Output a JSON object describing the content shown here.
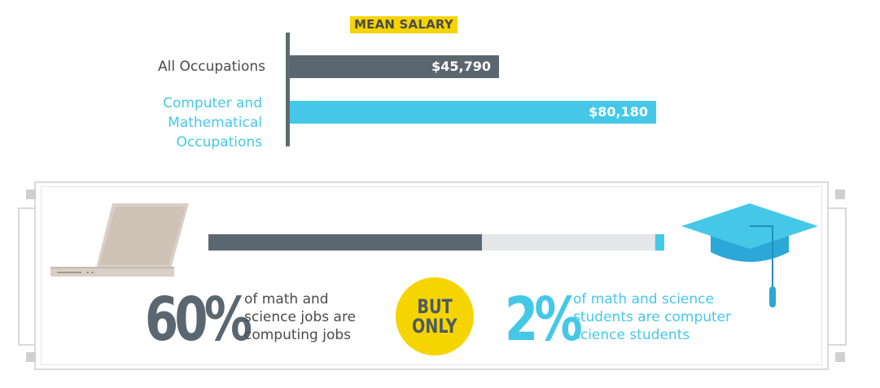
{
  "chart_data": {
    "type": "bar",
    "title": "MEAN SALARY",
    "categories": [
      "All Occupations",
      "Computer and Mathematical Occupations"
    ],
    "category_lines": [
      [
        "All Occupations"
      ],
      [
        "Computer and",
        "Mathematical",
        "Occupations"
      ]
    ],
    "values": [
      45790,
      80180
    ],
    "value_labels": [
      "$45,790",
      "$80,180"
    ],
    "xlim": [
      0,
      89000
    ],
    "orientation": "horizontal",
    "colors": [
      "#5b6770",
      "#45c8e8"
    ],
    "label_colors": [
      "#4a4a4a",
      "#45c8e8"
    ]
  },
  "stat_bar": {
    "segments": [
      {
        "fraction": 0.6,
        "color": "#5b6770"
      },
      {
        "fraction": 0.38,
        "color": "#e4e6e8"
      },
      {
        "fraction": 0.02,
        "color": "#45c8e8"
      }
    ]
  },
  "stats": {
    "left": {
      "value": "60%",
      "lines": [
        "of math and",
        "science jobs are",
        "computing jobs"
      ],
      "color": "#5b6770"
    },
    "connector": {
      "lines": [
        "BUT",
        "ONLY"
      ]
    },
    "right": {
      "value": "2%",
      "lines": [
        "of math and science",
        "students are computer",
        "science students"
      ],
      "color": "#45c8e8"
    }
  },
  "icons": {
    "left": "laptop-icon",
    "right": "graduation-cap-icon"
  }
}
